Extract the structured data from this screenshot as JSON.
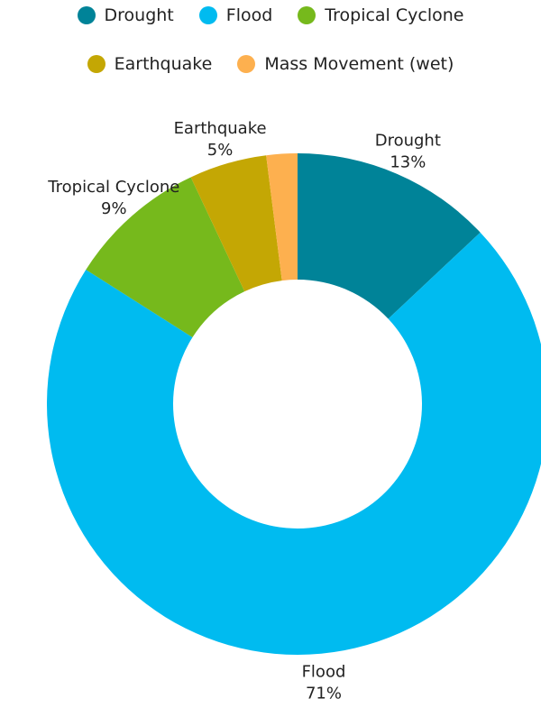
{
  "chart_data": {
    "type": "pie",
    "donut": true,
    "legend_position": "top",
    "slices": [
      {
        "name": "Drought",
        "value": 13,
        "label": "13%",
        "color": "#008398"
      },
      {
        "name": "Flood",
        "value": 71,
        "label": "71%",
        "color": "#00BBF0"
      },
      {
        "name": "Tropical Cyclone",
        "value": 9,
        "label": "9%",
        "color": "#76B91C"
      },
      {
        "name": "Earthquake",
        "value": 5,
        "label": "5%",
        "color": "#C4A704"
      },
      {
        "name": "Mass Movement (wet)",
        "value": 2,
        "color": "#FDB04F"
      }
    ],
    "legend": {
      "rows": [
        [
          "Drought",
          "Flood",
          "Tropical Cyclone"
        ],
        [
          "Earthquake",
          "Mass Movement (wet)"
        ]
      ]
    }
  }
}
